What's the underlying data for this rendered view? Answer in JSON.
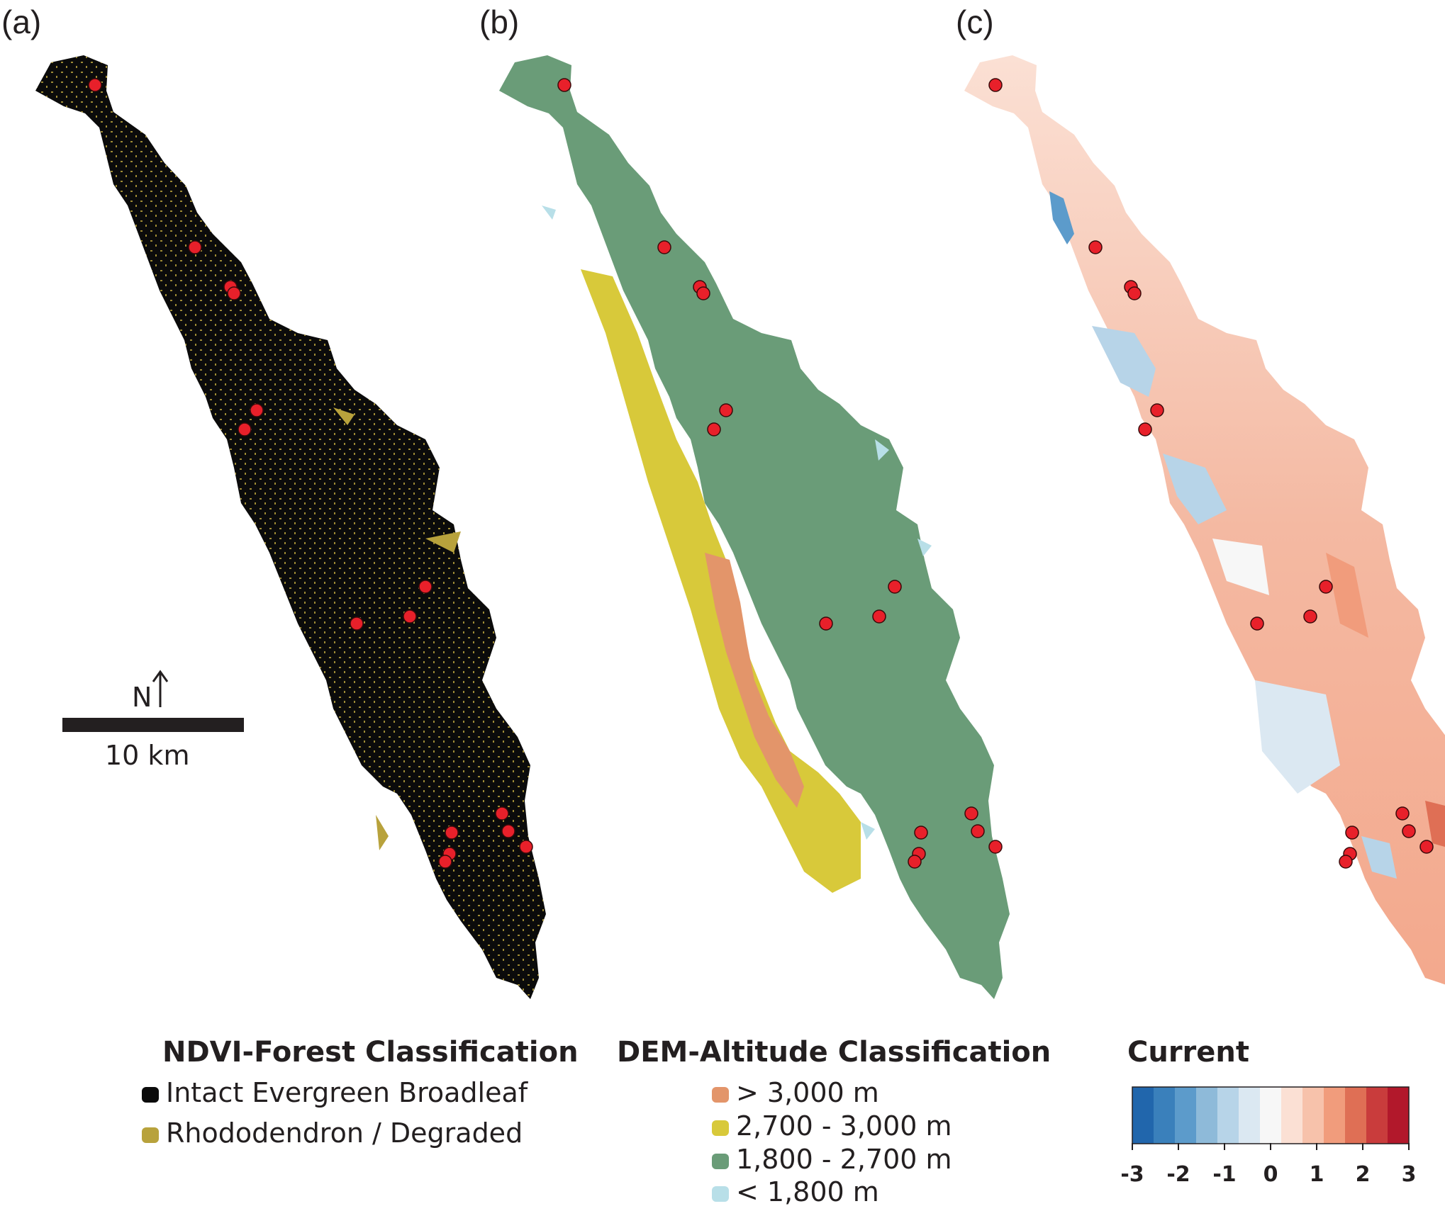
{
  "panels": [
    {
      "label": "(a)",
      "legend_title": "NDVI-Forest Classification",
      "legend": [
        {
          "text": "Intact Evergreen Broadleaf",
          "color": "#0b0b0b"
        },
        {
          "text": "Rhododendron / Degraded",
          "color": "#b8a23c"
        }
      ]
    },
    {
      "label": "(b)",
      "legend_title": "DEM-Altitude Classification",
      "legend": [
        {
          "text": "> 3,000 m",
          "color": "#e3956a"
        },
        {
          "text": "2,700 - 3,000 m",
          "color": "#d8c93a"
        },
        {
          "text": "1,800 - 2,700 m",
          "color": "#6a9c78"
        },
        {
          "text": "< 1,800 m",
          "color": "#b8dfe8"
        }
      ]
    },
    {
      "label": "(c)",
      "legend_title": "Current",
      "colorbar": {
        "ticks": [
          "-3",
          "-2",
          "-1",
          "0",
          "1",
          "2",
          "3"
        ],
        "min": -3,
        "max": 3,
        "colors": [
          "#2166ac",
          "#3a80bb",
          "#5c9bcb",
          "#8ebad9",
          "#b7d4e8",
          "#dbe8f2",
          "#f7f7f7",
          "#fbe0d4",
          "#f7c2ab",
          "#f19c7c",
          "#df6f55",
          "#c93c3c",
          "#b2182b"
        ]
      }
    }
  ],
  "scale_bar": {
    "north_label": "N",
    "distance_label": "10 km"
  },
  "site_marker_color": "#e8202a"
}
